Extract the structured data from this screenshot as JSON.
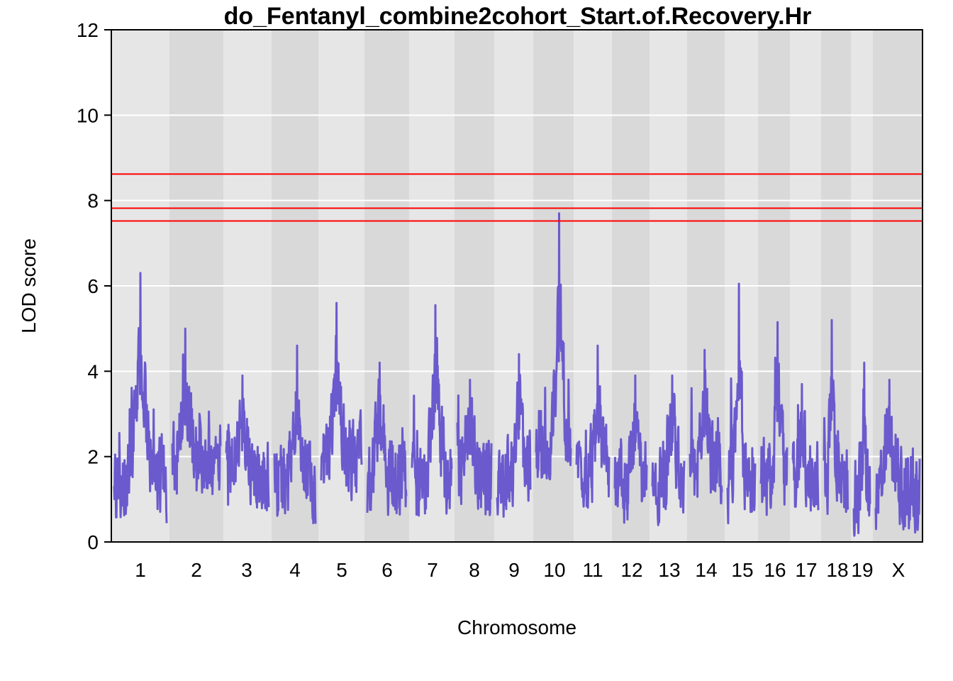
{
  "chart_data": {
    "type": "line",
    "title": "do_Fentanyl_combine2cohort_Start.of.Recovery.Hr",
    "xlabel": "Chromosome",
    "ylabel": "LOD score",
    "ylim": [
      0,
      12
    ],
    "yticks": [
      "0",
      "2",
      "4",
      "6",
      "8",
      "10",
      "12"
    ],
    "grid": "horizontal white gridlines",
    "colors": {
      "lod_curve": "#6a5acd",
      "threshold": "#ff0000",
      "band_light": "#e6e6e6",
      "band_dark": "#d9d9d9",
      "grid": "#ffffff"
    },
    "thresholds": [
      8.62,
      7.82,
      7.52
    ],
    "chromosomes": [
      {
        "label": "1",
        "peak": 6.3,
        "base": 1.5
      },
      {
        "label": "2",
        "peak": 5.0,
        "base": 1.7
      },
      {
        "label": "3",
        "peak": 3.9,
        "base": 1.5
      },
      {
        "label": "4",
        "peak": 4.6,
        "base": 1.4
      },
      {
        "label": "5",
        "peak": 5.6,
        "base": 1.9
      },
      {
        "label": "6",
        "peak": 4.2,
        "base": 1.4
      },
      {
        "label": "7",
        "peak": 5.55,
        "base": 1.4
      },
      {
        "label": "8",
        "peak": 3.8,
        "base": 1.4
      },
      {
        "label": "9",
        "peak": 4.4,
        "base": 1.5
      },
      {
        "label": "10",
        "peak": 7.7,
        "base": 2.2
      },
      {
        "label": "11",
        "peak": 4.6,
        "base": 1.5
      },
      {
        "label": "12",
        "peak": 3.9,
        "base": 1.3
      },
      {
        "label": "13",
        "peak": 3.9,
        "base": 1.5
      },
      {
        "label": "14",
        "peak": 4.5,
        "base": 1.7
      },
      {
        "label": "15",
        "peak": 6.05,
        "base": 1.4
      },
      {
        "label": "16",
        "peak": 5.15,
        "base": 1.5
      },
      {
        "label": "17",
        "peak": 3.7,
        "base": 1.4
      },
      {
        "label": "18",
        "peak": 5.2,
        "base": 1.3
      },
      {
        "label": "19",
        "peak": 4.2,
        "base": 1.2
      },
      {
        "label": "X",
        "peak": 3.8,
        "base": 1.2
      }
    ]
  }
}
